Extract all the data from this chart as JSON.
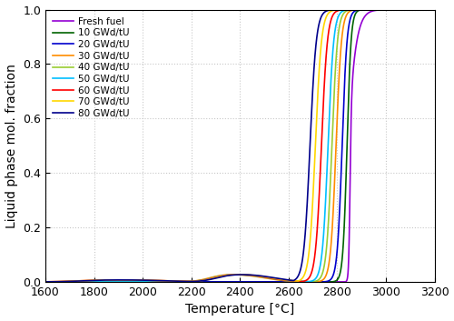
{
  "xlabel": "Temperature [°C]",
  "ylabel": "Liquid phase mol. fraction",
  "xlim": [
    1600,
    3200
  ],
  "ylim": [
    0,
    1
  ],
  "xticks": [
    1600,
    1800,
    2000,
    2200,
    2400,
    2600,
    2800,
    3000,
    3200
  ],
  "yticks": [
    0,
    0.2,
    0.4,
    0.6,
    0.8,
    1.0
  ],
  "series": [
    {
      "label": "Fresh fuel",
      "color": "#9400D3",
      "segments": [
        {
          "T0": 1600,
          "T1": 2850,
          "v0": 0.0,
          "v1": 0.0
        },
        {
          "T0": 2850,
          "T1": 2860,
          "v0": 0.0,
          "v1": 1.0
        },
        {
          "T0": 2860,
          "T1": 3200,
          "v0": 1.0,
          "v1": 1.0
        }
      ]
    },
    {
      "label": "10 GWd/tU",
      "color": "#006400",
      "segments": [
        {
          "T0": 1600,
          "T1": 2730,
          "v0": 0.005,
          "v1": 0.005
        },
        {
          "T0": 2730,
          "T1": 2850,
          "v0": 0.005,
          "v1": 1.0
        },
        {
          "T0": 2850,
          "T1": 3200,
          "v0": 1.0,
          "v1": 1.0
        }
      ]
    },
    {
      "label": "20 GWd/tU",
      "color": "#0000CD",
      "segments": [
        {
          "T0": 1600,
          "T1": 2680,
          "v0": 0.003,
          "v1": 0.003
        },
        {
          "T0": 2680,
          "T1": 2820,
          "v0": 0.003,
          "v1": 1.0
        },
        {
          "T0": 2820,
          "T1": 3200,
          "v0": 1.0,
          "v1": 1.0
        }
      ]
    },
    {
      "label": "30 GWd/tU",
      "color": "#FF8C00",
      "segments": [
        {
          "T0": 1600,
          "T1": 2200,
          "v0": 0.0,
          "v1": 0.02
        },
        {
          "T0": 2200,
          "T1": 2350,
          "v0": 0.02,
          "v1": 0.03
        },
        {
          "T0": 2350,
          "T1": 2620,
          "v0": 0.03,
          "v1": 0.03
        },
        {
          "T0": 2620,
          "T1": 2800,
          "v0": 0.03,
          "v1": 1.0
        },
        {
          "T0": 2800,
          "T1": 3200,
          "v0": 1.0,
          "v1": 1.0
        }
      ]
    },
    {
      "label": "40 GWd/tU",
      "color": "#9ACD32",
      "segments": [
        {
          "T0": 1600,
          "T1": 2200,
          "v0": 0.0,
          "v1": 0.02
        },
        {
          "T0": 2200,
          "T1": 2350,
          "v0": 0.02,
          "v1": 0.03
        },
        {
          "T0": 2350,
          "T1": 2640,
          "v0": 0.03,
          "v1": 0.03
        },
        {
          "T0": 2640,
          "T1": 2790,
          "v0": 0.03,
          "v1": 1.0
        },
        {
          "T0": 2790,
          "T1": 3200,
          "v0": 1.0,
          "v1": 1.0
        }
      ]
    },
    {
      "label": "50 GWd/tU",
      "color": "#00BFFF",
      "segments": [
        {
          "T0": 1600,
          "T1": 2200,
          "v0": 0.0,
          "v1": 0.02
        },
        {
          "T0": 2200,
          "T1": 2350,
          "v0": 0.02,
          "v1": 0.03
        },
        {
          "T0": 2350,
          "T1": 2660,
          "v0": 0.03,
          "v1": 0.03
        },
        {
          "T0": 2660,
          "T1": 2780,
          "v0": 0.03,
          "v1": 1.0
        },
        {
          "T0": 2780,
          "T1": 3200,
          "v0": 1.0,
          "v1": 1.0
        }
      ]
    },
    {
      "label": "60 GWd/tU",
      "color": "#FF0000",
      "segments": [
        {
          "T0": 1600,
          "T1": 1800,
          "v0": 0.003,
          "v1": 0.006
        },
        {
          "T0": 1800,
          "T1": 2150,
          "v0": 0.006,
          "v1": 0.015
        },
        {
          "T0": 2150,
          "T1": 2350,
          "v0": 0.015,
          "v1": 0.035
        },
        {
          "T0": 2350,
          "T1": 2670,
          "v0": 0.035,
          "v1": 0.035
        },
        {
          "T0": 2670,
          "T1": 2760,
          "v0": 0.035,
          "v1": 1.0
        },
        {
          "T0": 2760,
          "T1": 3200,
          "v0": 1.0,
          "v1": 1.0
        }
      ]
    },
    {
      "label": "70 GWd/tU",
      "color": "#FFD700",
      "segments": [
        {
          "T0": 1600,
          "T1": 1800,
          "v0": 0.003,
          "v1": 0.007
        },
        {
          "T0": 1800,
          "T1": 2150,
          "v0": 0.007,
          "v1": 0.02
        },
        {
          "T0": 2150,
          "T1": 2350,
          "v0": 0.02,
          "v1": 0.04
        },
        {
          "T0": 2350,
          "T1": 2680,
          "v0": 0.04,
          "v1": 0.04
        },
        {
          "T0": 2680,
          "T1": 2745,
          "v0": 0.04,
          "v1": 1.0
        },
        {
          "T0": 2745,
          "T1": 3200,
          "v0": 1.0,
          "v1": 1.0
        }
      ]
    },
    {
      "label": "80 GWd/tU",
      "color": "#00008B",
      "segments": [
        {
          "T0": 1600,
          "T1": 1800,
          "v0": 0.004,
          "v1": 0.009
        },
        {
          "T0": 1800,
          "T1": 2150,
          "v0": 0.009,
          "v1": 0.025
        },
        {
          "T0": 2150,
          "T1": 2350,
          "v0": 0.025,
          "v1": 0.045
        },
        {
          "T0": 2350,
          "T1": 2690,
          "v0": 0.045,
          "v1": 0.045
        },
        {
          "T0": 2690,
          "T1": 2730,
          "v0": 0.045,
          "v1": 1.0
        },
        {
          "T0": 2730,
          "T1": 3200,
          "v0": 1.0,
          "v1": 1.0
        }
      ]
    }
  ],
  "figsize": [
    5.0,
    3.53
  ],
  "dpi": 100,
  "background_color": "#ffffff",
  "grid_color": "#c8c8c8",
  "legend_fontsize": 7.5,
  "axis_fontsize": 10,
  "tick_fontsize": 9,
  "linewidth": 1.2
}
